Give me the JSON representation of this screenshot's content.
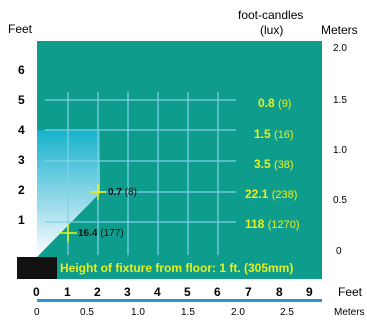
{
  "header": {
    "feet_label": "Feet",
    "fc_label": "foot-candles",
    "lux_label": "(lux)",
    "meters_label": "Meters"
  },
  "left_scale": [
    "6",
    "5",
    "4",
    "3",
    "2",
    "1"
  ],
  "right_scale": [
    "2.0",
    "1.5",
    "1.0",
    "0.5",
    "0"
  ],
  "readings": [
    {
      "fc": "0.8",
      "lux": "(9)"
    },
    {
      "fc": "1.5",
      "lux": "(16)"
    },
    {
      "fc": "3.5",
      "lux": "(38)"
    },
    {
      "fc": "22.1",
      "lux": "(238)"
    },
    {
      "fc": "118",
      "lux": "(1270)"
    }
  ],
  "points": [
    {
      "fc": "0.7",
      "lux": "(8)"
    },
    {
      "fc": "16.4",
      "lux": "(177)"
    }
  ],
  "banner": "Height of fixture from floor: 1 ft. (305mm)",
  "bottom_feet": [
    "0",
    "1",
    "2",
    "3",
    "4",
    "5",
    "6",
    "7",
    "8",
    "9"
  ],
  "bottom_feet_label": "Feet",
  "bottom_meters": [
    "0",
    "0.5",
    "1.0",
    "1.5",
    "2.0",
    "2.5"
  ],
  "bottom_meters_label": "Meters",
  "colors": {
    "field": "#0e9d8c",
    "beam": "#18b6cf",
    "grid": "#7fd3e6",
    "highlight": "#e8ef1f",
    "axis_line": "#2a93d5"
  }
}
